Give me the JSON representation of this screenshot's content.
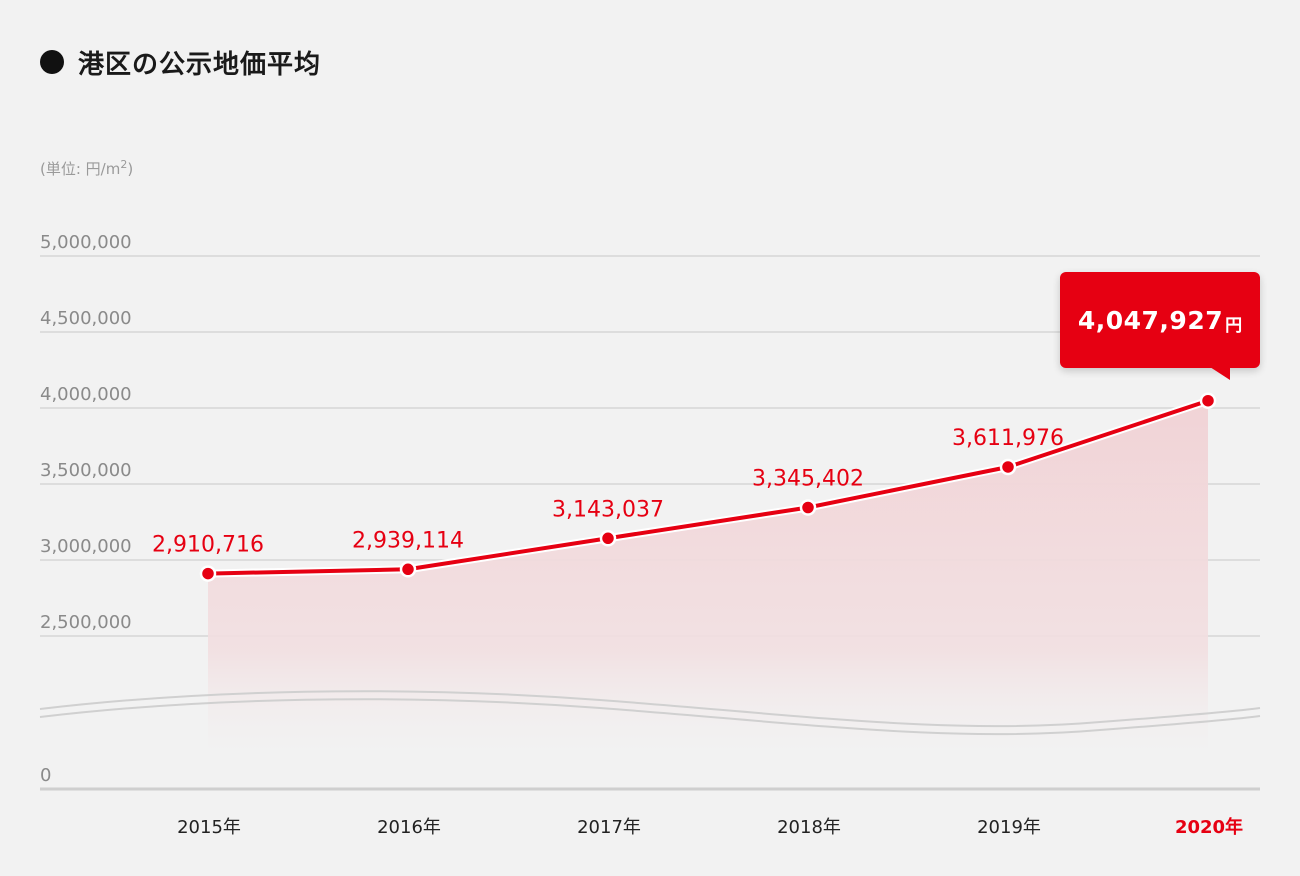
{
  "title": "港区の公示地価平均",
  "unit_label": "(単位: 円/m",
  "unit_sup": "2",
  "unit_close": ")",
  "callout": {
    "value": "4,047,927",
    "unit": "円"
  },
  "colors": {
    "accent": "#e60012",
    "grid": "#d4d4d4",
    "area": "#f1d5d8",
    "background": "#f2f2f2"
  },
  "chart_data": {
    "type": "line",
    "categories": [
      "2015年",
      "2016年",
      "2017年",
      "2018年",
      "2019年",
      "2020年"
    ],
    "series": [
      {
        "values": [
          2910716,
          2939114,
          3143037,
          3345402,
          3611976,
          4047927
        ]
      }
    ],
    "value_labels": [
      "2,910,716",
      "2,939,114",
      "3,143,037",
      "3,345,402",
      "3,611,976"
    ],
    "yticks": [
      0,
      2500000,
      3000000,
      3500000,
      4000000,
      4500000,
      5000000
    ],
    "ytick_labels": [
      "0",
      "2,500,000",
      "3,000,000",
      "3,500,000",
      "4,000,000",
      "4,500,000",
      "5,000,000"
    ],
    "axis_break": true,
    "ylim": [
      0,
      5000000
    ],
    "grid": true,
    "area_fill": true,
    "highlight_last": true
  }
}
